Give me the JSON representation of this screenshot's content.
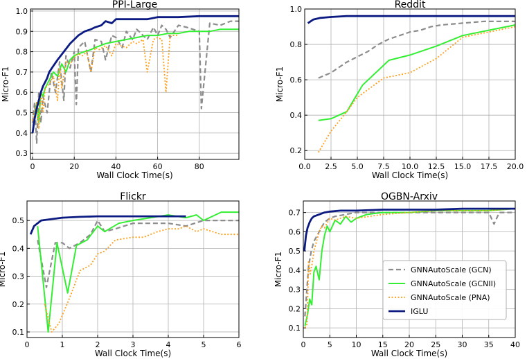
{
  "legend": {
    "entries": [
      {
        "label": "GNNAutoScale (GCN)",
        "color": "#8c8c8c",
        "style": "dashed"
      },
      {
        "label": "GNNAutoScale (GCNII)",
        "color": "#33ee33",
        "style": "solid"
      },
      {
        "label": "GNNAutoScale (PNA)",
        "color": "#ff9f1a",
        "style": "dotted"
      },
      {
        "label": "IGLU",
        "color": "#0b1b82",
        "style": "solid-thick"
      }
    ]
  },
  "chart_data": [
    {
      "type": "line",
      "title": "PPI-Large",
      "xlabel": "Wall Clock Time(s)",
      "ylabel": "Micro-F1",
      "xlim": [
        -1,
        99
      ],
      "ylim": [
        0.27,
        1.01
      ],
      "xticks": [
        "0",
        "20",
        "40",
        "60",
        "80"
      ],
      "yticks": [
        "0.3",
        "0.4",
        "0.5",
        "0.6",
        "0.7",
        "0.8",
        "0.9",
        "1.0"
      ],
      "grid": true,
      "series": [
        {
          "name": "GNNAutoScale (GCN)",
          "color": "#8c8c8c",
          "style": "dashed",
          "x": [
            0,
            1,
            2,
            3,
            4,
            5,
            7,
            9,
            11,
            13,
            15,
            16,
            18,
            20,
            21,
            22,
            25,
            28,
            30,
            33,
            35,
            38,
            40,
            43,
            45,
            48,
            50,
            53,
            55,
            58,
            60,
            62,
            64,
            66,
            70,
            74,
            80,
            81,
            85,
            90,
            95,
            99
          ],
          "y": [
            0.45,
            0.55,
            0.35,
            0.6,
            0.45,
            0.58,
            0.5,
            0.7,
            0.6,
            0.75,
            0.56,
            0.78,
            0.72,
            0.8,
            0.54,
            0.82,
            0.85,
            0.7,
            0.86,
            0.85,
            0.76,
            0.88,
            0.87,
            0.82,
            0.9,
            0.86,
            0.91,
            0.88,
            0.86,
            0.92,
            0.88,
            0.93,
            0.91,
            0.87,
            0.93,
            0.92,
            0.9,
            0.52,
            0.94,
            0.93,
            0.95,
            0.95
          ]
        },
        {
          "name": "GNNAutoScale (GCNII)",
          "color": "#33ee33",
          "style": "solid",
          "x": [
            0,
            1,
            2,
            3,
            4,
            5,
            6,
            8,
            10,
            12,
            14,
            16,
            18,
            20,
            22,
            25,
            28,
            30,
            35,
            40,
            45,
            50,
            55,
            60,
            65,
            70,
            75,
            80,
            85,
            90,
            95,
            99
          ],
          "y": [
            0.4,
            0.48,
            0.55,
            0.45,
            0.6,
            0.58,
            0.62,
            0.66,
            0.7,
            0.68,
            0.74,
            0.7,
            0.76,
            0.78,
            0.79,
            0.8,
            0.81,
            0.82,
            0.84,
            0.85,
            0.86,
            0.87,
            0.88,
            0.88,
            0.89,
            0.89,
            0.9,
            0.9,
            0.9,
            0.91,
            0.91,
            0.91
          ]
        },
        {
          "name": "GNNAutoScale (PNA)",
          "color": "#ff9f1a",
          "style": "dotted",
          "x": [
            0,
            1,
            2,
            3,
            4,
            5,
            6,
            8,
            10,
            12,
            13,
            14,
            16,
            18,
            20,
            22,
            24,
            26,
            28,
            30,
            32,
            35,
            38,
            40,
            42,
            45,
            48,
            50,
            53,
            55,
            58,
            60,
            62,
            64,
            66,
            70
          ],
          "y": [
            0.46,
            0.5,
            0.55,
            0.42,
            0.6,
            0.5,
            0.62,
            0.64,
            0.68,
            0.56,
            0.72,
            0.62,
            0.75,
            0.74,
            0.77,
            0.79,
            0.78,
            0.8,
            0.7,
            0.82,
            0.81,
            0.83,
            0.78,
            0.84,
            0.83,
            0.82,
            0.85,
            0.84,
            0.86,
            0.7,
            0.86,
            0.87,
            0.86,
            0.6,
            0.88,
            0.88
          ]
        },
        {
          "name": "IGLU",
          "color": "#0b1b82",
          "style": "solid-thick",
          "x": [
            0,
            1,
            2,
            3,
            4,
            5,
            6,
            7,
            8,
            10,
            12,
            15,
            18,
            20,
            22,
            25,
            28,
            30,
            33,
            35,
            38,
            40,
            45,
            50,
            55,
            60,
            65,
            70,
            80,
            90,
            99
          ],
          "y": [
            0.4,
            0.47,
            0.52,
            0.56,
            0.6,
            0.63,
            0.65,
            0.67,
            0.7,
            0.73,
            0.76,
            0.8,
            0.84,
            0.86,
            0.88,
            0.9,
            0.91,
            0.92,
            0.93,
            0.95,
            0.94,
            0.96,
            0.96,
            0.96,
            0.96,
            0.97,
            0.97,
            0.97,
            0.975,
            0.975,
            0.975
          ]
        }
      ]
    },
    {
      "type": "line",
      "title": "Reddit",
      "xlabel": "Wall Clock Time(s)",
      "ylabel": "Micro-F1",
      "xlim": [
        0,
        20
      ],
      "ylim": [
        0.15,
        1.0
      ],
      "xticks": [
        "0.0",
        "2.5",
        "5.0",
        "7.5",
        "10.0",
        "12.5",
        "15.0",
        "17.5",
        "20.0"
      ],
      "yticks": [
        "0.2",
        "0.4",
        "0.6",
        "0.8",
        "1.0"
      ],
      "grid": true,
      "series": [
        {
          "name": "GNNAutoScale (GCN)",
          "color": "#8c8c8c",
          "style": "dashed",
          "x": [
            1.3,
            2.5,
            4,
            5,
            6,
            7,
            8,
            9,
            10,
            11,
            12,
            13,
            15,
            17,
            20
          ],
          "y": [
            0.61,
            0.64,
            0.7,
            0.73,
            0.76,
            0.8,
            0.83,
            0.85,
            0.87,
            0.88,
            0.9,
            0.91,
            0.92,
            0.93,
            0.93
          ]
        },
        {
          "name": "GNNAutoScale (GCNII)",
          "color": "#33ee33",
          "style": "solid",
          "x": [
            1.3,
            2.5,
            4,
            5.5,
            8,
            10,
            12.5,
            15,
            17.5,
            20
          ],
          "y": [
            0.37,
            0.38,
            0.42,
            0.57,
            0.71,
            0.74,
            0.79,
            0.85,
            0.88,
            0.91
          ]
        },
        {
          "name": "GNNAutoScale (PNA)",
          "color": "#ff9f1a",
          "style": "dotted",
          "x": [
            1.3,
            2.5,
            4,
            5,
            7.5,
            10,
            12.5,
            15,
            17.5,
            20
          ],
          "y": [
            0.19,
            0.31,
            0.42,
            0.5,
            0.61,
            0.64,
            0.72,
            0.84,
            0.87,
            0.9
          ]
        },
        {
          "name": "IGLU",
          "color": "#0b1b82",
          "style": "solid-thick",
          "x": [
            0.3,
            0.8,
            1.5,
            2.5,
            4,
            6,
            8,
            10,
            12.5,
            15,
            17.5,
            20
          ],
          "y": [
            0.92,
            0.94,
            0.95,
            0.955,
            0.96,
            0.96,
            0.96,
            0.96,
            0.96,
            0.96,
            0.96,
            0.96
          ]
        }
      ]
    },
    {
      "type": "line",
      "title": "Flickr",
      "xlabel": "Wall Clock Time(s)",
      "ylabel": "Micro-F1",
      "xlim": [
        0,
        6
      ],
      "ylim": [
        0.08,
        0.57
      ],
      "xticks": [
        "0",
        "1",
        "2",
        "3",
        "4",
        "5",
        "6"
      ],
      "yticks": [
        "0.1",
        "0.2",
        "0.3",
        "0.4",
        "0.5"
      ],
      "grid": true,
      "series": [
        {
          "name": "GNNAutoScale (GCN)",
          "color": "#8c8c8c",
          "style": "dashed",
          "x": [
            0.3,
            0.55,
            0.8,
            1.0,
            1.2,
            1.5,
            1.8,
            2.0,
            2.2,
            2.5,
            3.0,
            3.5,
            4.0,
            4.5,
            5.0,
            5.5,
            6.0
          ],
          "y": [
            0.43,
            0.26,
            0.42,
            0.42,
            0.4,
            0.42,
            0.45,
            0.5,
            0.46,
            0.47,
            0.49,
            0.49,
            0.49,
            0.48,
            0.5,
            0.5,
            0.5
          ]
        },
        {
          "name": "GNNAutoScale (GCNII)",
          "color": "#33ee33",
          "style": "solid",
          "x": [
            0.3,
            0.6,
            0.85,
            1.15,
            1.4,
            1.7,
            2.0,
            2.2,
            2.6,
            3.0,
            3.5,
            4.0,
            4.5,
            4.8,
            5.0,
            5.5,
            6.0
          ],
          "y": [
            0.48,
            0.1,
            0.42,
            0.24,
            0.41,
            0.43,
            0.48,
            0.46,
            0.49,
            0.5,
            0.51,
            0.52,
            0.51,
            0.52,
            0.5,
            0.53,
            0.53
          ]
        },
        {
          "name": "GNNAutoScale (PNA)",
          "color": "#ff9f1a",
          "style": "dotted",
          "x": [
            0.5,
            0.7,
            0.9,
            1.2,
            1.5,
            1.8,
            2.0,
            2.2,
            2.5,
            3.0,
            3.3,
            3.7,
            4.0,
            4.3,
            4.5,
            4.8,
            5.0,
            5.5,
            6.0
          ],
          "y": [
            0.2,
            0.1,
            0.13,
            0.22,
            0.32,
            0.34,
            0.38,
            0.39,
            0.43,
            0.44,
            0.44,
            0.46,
            0.47,
            0.47,
            0.48,
            0.46,
            0.47,
            0.45,
            0.45
          ]
        },
        {
          "name": "IGLU",
          "color": "#0b1b82",
          "style": "solid-thick",
          "x": [
            0.1,
            0.2,
            0.4,
            0.7,
            1.0,
            1.5,
            2.0,
            3.0,
            4.0,
            4.5
          ],
          "y": [
            0.45,
            0.48,
            0.5,
            0.505,
            0.51,
            0.513,
            0.515,
            0.515,
            0.515,
            0.515
          ]
        }
      ]
    },
    {
      "type": "line",
      "title": "OGBN-Arxiv",
      "xlabel": "Wall Clock Time(s)",
      "ylabel": "Micro-F1",
      "xlim": [
        0,
        40
      ],
      "ylim": [
        0.05,
        0.76
      ],
      "xticks": [
        "0",
        "5",
        "10",
        "15",
        "20",
        "25",
        "30",
        "35",
        "40"
      ],
      "yticks": [
        "0.1",
        "0.2",
        "0.3",
        "0.4",
        "0.5",
        "0.6",
        "0.7"
      ],
      "grid": true,
      "series": [
        {
          "name": "GNNAutoScale (GCN)",
          "color": "#8c8c8c",
          "style": "dashed",
          "x": [
            0.3,
            1,
            1.5,
            2,
            3,
            4,
            5,
            6,
            8,
            10,
            15,
            20,
            25,
            30,
            35,
            36,
            37,
            40
          ],
          "y": [
            0.16,
            0.42,
            0.5,
            0.55,
            0.6,
            0.65,
            0.67,
            0.68,
            0.69,
            0.7,
            0.7,
            0.7,
            0.7,
            0.7,
            0.7,
            0.64,
            0.7,
            0.7
          ]
        },
        {
          "name": "GNNAutoScale (GCNII)",
          "color": "#33ee33",
          "style": "solid",
          "x": [
            0.3,
            0.8,
            1.2,
            1.6,
            2.0,
            2.4,
            3.0,
            3.5,
            4.0,
            4.5,
            5.0,
            6.0,
            7.0,
            8.0,
            9.0,
            10.0,
            12.0,
            15.0,
            20.0,
            25.0,
            30.0,
            35.0,
            40.0
          ],
          "y": [
            0.11,
            0.17,
            0.25,
            0.22,
            0.39,
            0.42,
            0.35,
            0.5,
            0.58,
            0.63,
            0.6,
            0.66,
            0.64,
            0.68,
            0.65,
            0.67,
            0.69,
            0.7,
            0.7,
            0.71,
            0.71,
            0.71,
            0.72
          ]
        },
        {
          "name": "GNNAutoScale (PNA)",
          "color": "#ff9f1a",
          "style": "dotted",
          "x": [
            0.3,
            0.7,
            1.0,
            1.3,
            1.7,
            2.0,
            2.5,
            3.0,
            3.5,
            4.0,
            5.0,
            6.0,
            8.0,
            10.0,
            15.0,
            20.0,
            25.0,
            30.0,
            35.0,
            40.0
          ],
          "y": [
            0.1,
            0.12,
            0.45,
            0.38,
            0.44,
            0.5,
            0.55,
            0.6,
            0.63,
            0.62,
            0.67,
            0.66,
            0.68,
            0.67,
            0.69,
            0.7,
            0.71,
            0.71,
            0.71,
            0.72
          ]
        },
        {
          "name": "IGLU",
          "color": "#0b1b82",
          "style": "solid-thick",
          "x": [
            0.2,
            0.5,
            0.8,
            1.2,
            1.6,
            2.0,
            3.0,
            4.0,
            5.0,
            7.0,
            10.0,
            15.0,
            20.0,
            25.0,
            30.0,
            35.0,
            40.0
          ],
          "y": [
            0.5,
            0.58,
            0.62,
            0.65,
            0.67,
            0.68,
            0.69,
            0.7,
            0.705,
            0.71,
            0.71,
            0.715,
            0.715,
            0.715,
            0.72,
            0.72,
            0.72
          ]
        }
      ]
    }
  ]
}
